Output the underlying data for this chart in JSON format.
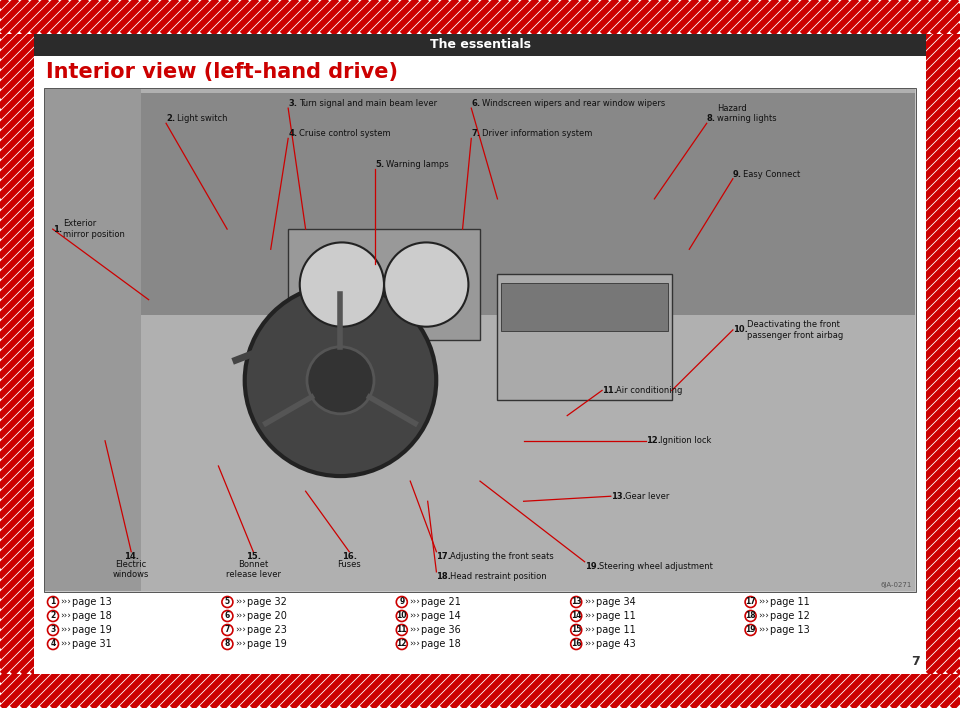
{
  "title": "The essentials",
  "heading": "Interior view (left-hand drive)",
  "background_color": "#ffffff",
  "header_bg": "#2d2d2d",
  "header_text_color": "#ffffff",
  "heading_color": "#cc0000",
  "page_number": "7",
  "diagonal_stripe_color": "#cc0000",
  "reference_entries": [
    {
      "num": "1",
      "page": "13"
    },
    {
      "num": "2",
      "page": "18"
    },
    {
      "num": "3",
      "page": "19"
    },
    {
      "num": "4",
      "page": "31"
    },
    {
      "num": "5",
      "page": "32"
    },
    {
      "num": "6",
      "page": "20"
    },
    {
      "num": "7",
      "page": "23"
    },
    {
      "num": "8",
      "page": "19"
    },
    {
      "num": "9",
      "page": "21"
    },
    {
      "num": "10",
      "page": "14"
    },
    {
      "num": "11",
      "page": "36"
    },
    {
      "num": "12",
      "page": "18"
    },
    {
      "num": "13",
      "page": "34"
    },
    {
      "num": "14",
      "page": "11"
    },
    {
      "num": "15",
      "page": "11"
    },
    {
      "num": "16",
      "page": "43"
    },
    {
      "num": "17",
      "page": "11"
    },
    {
      "num": "18",
      "page": "12"
    },
    {
      "num": "19",
      "page": "13"
    }
  ]
}
